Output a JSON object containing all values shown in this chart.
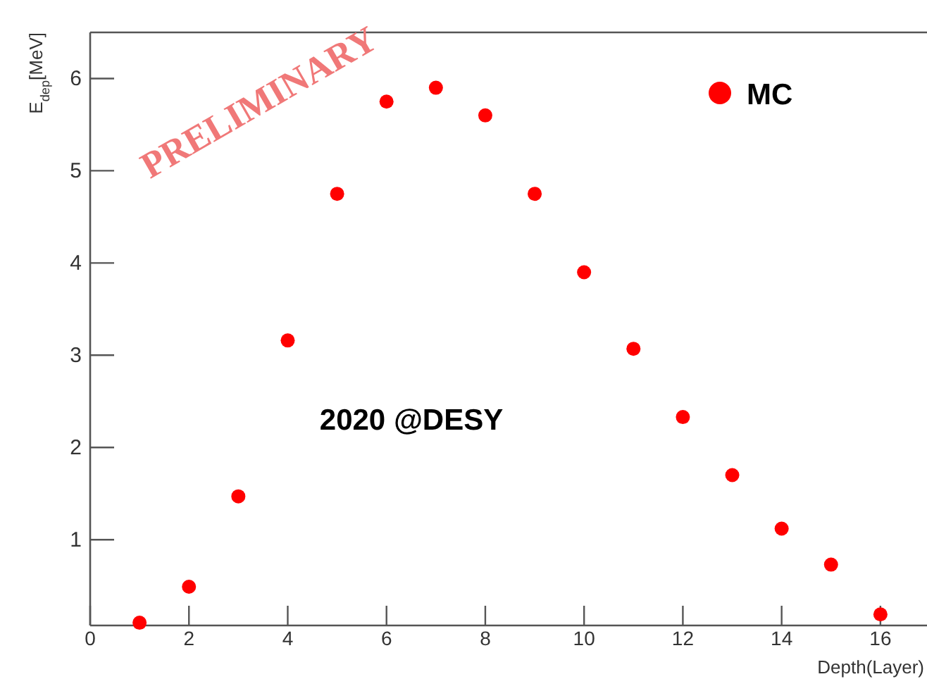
{
  "chart_data": {
    "type": "scatter",
    "xlabel": "Depth(Layer)",
    "ylabel": "E$_{dep}$[MeV]",
    "x": [
      1,
      2,
      3,
      4,
      5,
      6,
      7,
      8,
      9,
      10,
      11,
      12,
      13,
      14,
      15,
      16
    ],
    "series": [
      {
        "name": "MC",
        "color": "#ff0000",
        "values": [
          0.1,
          0.49,
          1.47,
          3.16,
          4.75,
          5.75,
          5.9,
          5.6,
          4.75,
          3.9,
          3.07,
          2.33,
          1.7,
          1.12,
          0.73,
          0.19
        ]
      }
    ],
    "xlim": [
      0,
      17
    ],
    "ylim": [
      0.07,
      6.5
    ],
    "xticks": [
      0,
      2,
      4,
      6,
      8,
      10,
      12,
      14,
      16
    ],
    "yticks": [
      1,
      2,
      3,
      4,
      5,
      6
    ],
    "marker": "circle",
    "legend": "top right",
    "grid": false,
    "annotations": [
      "PRELIMINARY",
      "2020 @DESY"
    ]
  }
}
